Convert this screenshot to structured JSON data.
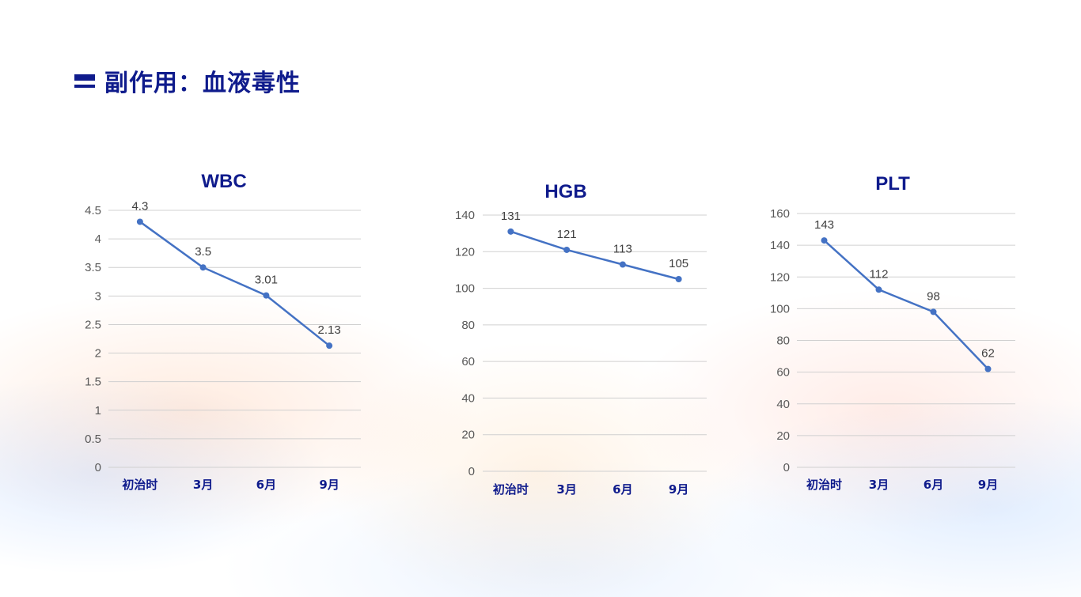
{
  "page_title": "副作用：血液毒性",
  "colors": {
    "accent": "#0f1b8c",
    "series": "#4472c4",
    "grid": "#d0d0d0"
  },
  "chart_data": [
    {
      "type": "line",
      "title": "WBC",
      "categories": [
        "初治时",
        "3月",
        "6月",
        "9月"
      ],
      "values": [
        4.3,
        3.5,
        3.01,
        2.13
      ],
      "value_labels": [
        "4.3",
        "3.5",
        "3.01",
        "2.13"
      ],
      "ylim": [
        0,
        4.5
      ],
      "yticks": [
        0,
        0.5,
        1,
        1.5,
        2,
        2.5,
        3,
        3.5,
        4,
        4.5
      ],
      "ytick_labels": [
        "0",
        "0.5",
        "1",
        "1.5",
        "2",
        "2.5",
        "3",
        "3.5",
        "4",
        "4.5"
      ],
      "grid": true,
      "legend": "none"
    },
    {
      "type": "line",
      "title": "HGB",
      "categories": [
        "初治时",
        "3月",
        "6月",
        "9月"
      ],
      "values": [
        131,
        121,
        113,
        105
      ],
      "value_labels": [
        "131",
        "121",
        "113",
        "105"
      ],
      "ylim": [
        0,
        140
      ],
      "yticks": [
        0,
        20,
        40,
        60,
        80,
        100,
        120,
        140
      ],
      "ytick_labels": [
        "0",
        "20",
        "40",
        "60",
        "80",
        "100",
        "120",
        "140"
      ],
      "grid": true,
      "legend": "none"
    },
    {
      "type": "line",
      "title": "PLT",
      "categories": [
        "初治时",
        "3月",
        "6月",
        "9月"
      ],
      "values": [
        143,
        112,
        98,
        62
      ],
      "value_labels": [
        "143",
        "112",
        "98",
        "62"
      ],
      "ylim": [
        0,
        160
      ],
      "yticks": [
        0,
        20,
        40,
        60,
        80,
        100,
        120,
        140,
        160
      ],
      "ytick_labels": [
        "0",
        "20",
        "40",
        "60",
        "80",
        "100",
        "120",
        "140",
        "160"
      ],
      "grid": true,
      "legend": "none"
    }
  ]
}
